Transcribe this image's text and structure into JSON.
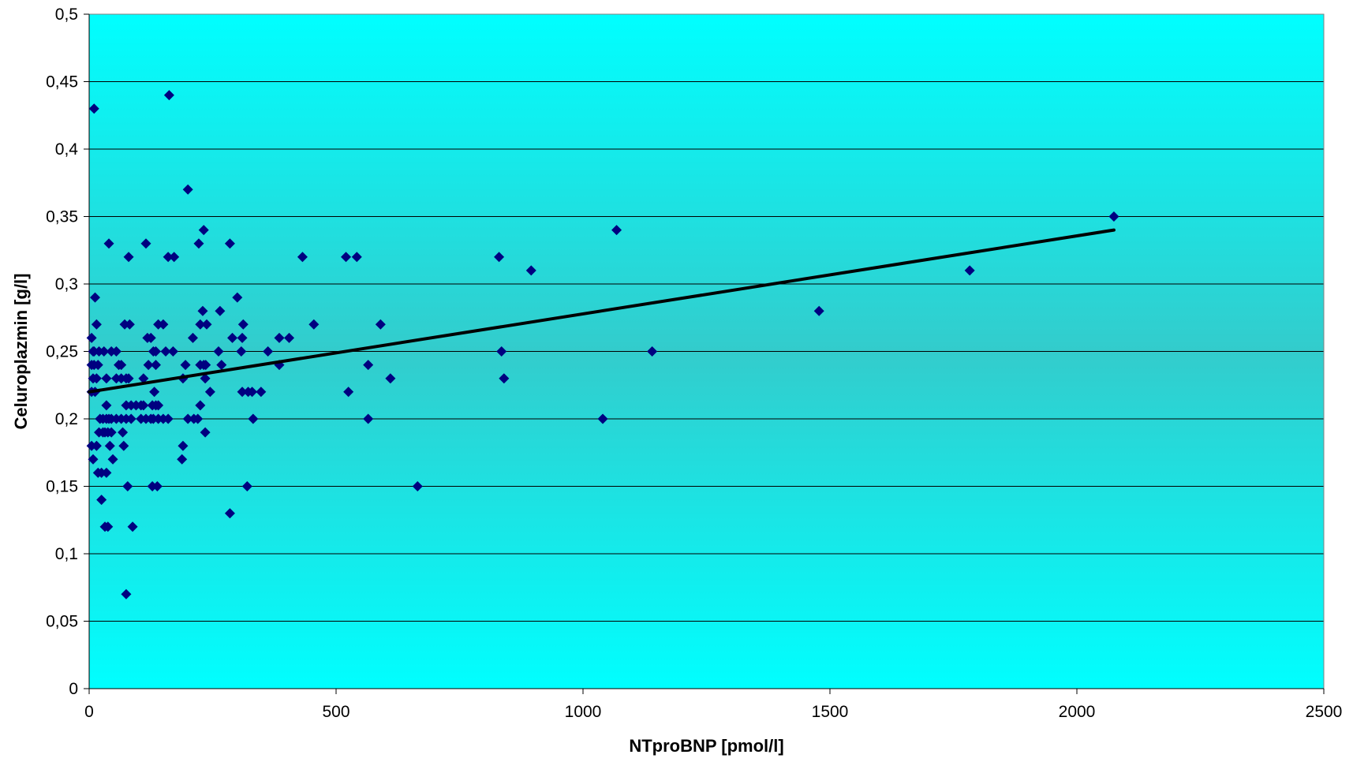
{
  "chart_data": {
    "type": "scatter",
    "title": "",
    "xlabel": "NTproBNP [pmol/l]",
    "ylabel": "Celuroplazmin [g/l]",
    "xlim": [
      0,
      2500
    ],
    "ylim": [
      0,
      0.5
    ],
    "x_ticks": [
      "0",
      "500",
      "1000",
      "1500",
      "2000",
      "2500"
    ],
    "y_ticks": [
      "0",
      "0,05",
      "0,1",
      "0,15",
      "0,2",
      "0,25",
      "0,3",
      "0,35",
      "0,4",
      "0,45",
      "0,5"
    ],
    "grid": "horizontal",
    "legend": "none",
    "colors": {
      "plot_top": "#00ffff",
      "plot_mid": "#33cccc",
      "marker": "#000080",
      "trendline": "#000000",
      "gridline": "#000000"
    },
    "series": [
      {
        "marker": "diamond",
        "points": [
          [
            10,
            0.43
          ],
          [
            12,
            0.29
          ],
          [
            15,
            0.27
          ],
          [
            5,
            0.26
          ],
          [
            8,
            0.25
          ],
          [
            10,
            0.25
          ],
          [
            20,
            0.25
          ],
          [
            30,
            0.25
          ],
          [
            5,
            0.24
          ],
          [
            10,
            0.24
          ],
          [
            18,
            0.24
          ],
          [
            8,
            0.23
          ],
          [
            15,
            0.23
          ],
          [
            35,
            0.23
          ],
          [
            5,
            0.22
          ],
          [
            12,
            0.22
          ],
          [
            35,
            0.21
          ],
          [
            22,
            0.2
          ],
          [
            28,
            0.2
          ],
          [
            35,
            0.2
          ],
          [
            40,
            0.2
          ],
          [
            45,
            0.2
          ],
          [
            20,
            0.19
          ],
          [
            28,
            0.19
          ],
          [
            32,
            0.19
          ],
          [
            38,
            0.19
          ],
          [
            45,
            0.19
          ],
          [
            5,
            0.18
          ],
          [
            15,
            0.18
          ],
          [
            42,
            0.18
          ],
          [
            8,
            0.17
          ],
          [
            48,
            0.17
          ],
          [
            18,
            0.16
          ],
          [
            25,
            0.16
          ],
          [
            35,
            0.16
          ],
          [
            25,
            0.14
          ],
          [
            32,
            0.12
          ],
          [
            38,
            0.12
          ],
          [
            40,
            0.33
          ],
          [
            45,
            0.25
          ],
          [
            55,
            0.25
          ],
          [
            60,
            0.24
          ],
          [
            65,
            0.24
          ],
          [
            55,
            0.23
          ],
          [
            65,
            0.23
          ],
          [
            55,
            0.2
          ],
          [
            65,
            0.2
          ],
          [
            68,
            0.19
          ],
          [
            70,
            0.18
          ],
          [
            72,
            0.27
          ],
          [
            82,
            0.27
          ],
          [
            75,
            0.23
          ],
          [
            80,
            0.23
          ],
          [
            75,
            0.21
          ],
          [
            85,
            0.21
          ],
          [
            95,
            0.21
          ],
          [
            75,
            0.2
          ],
          [
            85,
            0.2
          ],
          [
            78,
            0.15
          ],
          [
            80,
            0.32
          ],
          [
            75,
            0.07
          ],
          [
            88,
            0.12
          ],
          [
            105,
            0.21
          ],
          [
            110,
            0.21
          ],
          [
            105,
            0.2
          ],
          [
            115,
            0.2
          ],
          [
            110,
            0.23
          ],
          [
            115,
            0.33
          ],
          [
            118,
            0.26
          ],
          [
            125,
            0.26
          ],
          [
            120,
            0.24
          ],
          [
            135,
            0.24
          ],
          [
            130,
            0.25
          ],
          [
            135,
            0.25
          ],
          [
            125,
            0.2
          ],
          [
            132,
            0.22
          ],
          [
            128,
            0.21
          ],
          [
            135,
            0.21
          ],
          [
            140,
            0.21
          ],
          [
            130,
            0.2
          ],
          [
            140,
            0.2
          ],
          [
            150,
            0.2
          ],
          [
            160,
            0.2
          ],
          [
            128,
            0.15
          ],
          [
            138,
            0.15
          ],
          [
            140,
            0.27
          ],
          [
            150,
            0.27
          ],
          [
            155,
            0.25
          ],
          [
            170,
            0.25
          ],
          [
            160,
            0.32
          ],
          [
            172,
            0.32
          ],
          [
            162,
            0.44
          ],
          [
            200,
            0.37
          ],
          [
            190,
            0.23
          ],
          [
            195,
            0.24
          ],
          [
            210,
            0.26
          ],
          [
            200,
            0.2
          ],
          [
            212,
            0.2
          ],
          [
            220,
            0.2
          ],
          [
            190,
            0.18
          ],
          [
            188,
            0.17
          ],
          [
            222,
            0.33
          ],
          [
            232,
            0.34
          ],
          [
            230,
            0.28
          ],
          [
            225,
            0.27
          ],
          [
            238,
            0.27
          ],
          [
            225,
            0.24
          ],
          [
            232,
            0.24
          ],
          [
            236,
            0.24
          ],
          [
            235,
            0.23
          ],
          [
            245,
            0.22
          ],
          [
            225,
            0.21
          ],
          [
            235,
            0.19
          ],
          [
            265,
            0.28
          ],
          [
            262,
            0.25
          ],
          [
            268,
            0.24
          ],
          [
            285,
            0.33
          ],
          [
            290,
            0.26
          ],
          [
            300,
            0.29
          ],
          [
            310,
            0.26
          ],
          [
            312,
            0.27
          ],
          [
            308,
            0.25
          ],
          [
            310,
            0.22
          ],
          [
            322,
            0.22
          ],
          [
            330,
            0.22
          ],
          [
            348,
            0.22
          ],
          [
            332,
            0.2
          ],
          [
            320,
            0.15
          ],
          [
            285,
            0.13
          ],
          [
            362,
            0.25
          ],
          [
            385,
            0.26
          ],
          [
            385,
            0.24
          ],
          [
            405,
            0.26
          ],
          [
            432,
            0.32
          ],
          [
            455,
            0.27
          ],
          [
            520,
            0.32
          ],
          [
            542,
            0.32
          ],
          [
            525,
            0.22
          ],
          [
            565,
            0.24
          ],
          [
            565,
            0.2
          ],
          [
            590,
            0.27
          ],
          [
            610,
            0.23
          ],
          [
            665,
            0.15
          ],
          [
            830,
            0.32
          ],
          [
            835,
            0.25
          ],
          [
            840,
            0.23
          ],
          [
            895,
            0.31
          ],
          [
            1040,
            0.2
          ],
          [
            1068,
            0.34
          ],
          [
            1140,
            0.25
          ],
          [
            1478,
            0.28
          ],
          [
            1783,
            0.31
          ],
          [
            2075,
            0.35
          ]
        ]
      }
    ],
    "trendline": {
      "type": "linear",
      "x": [
        0,
        2075
      ],
      "y": [
        0.22,
        0.34
      ]
    }
  }
}
